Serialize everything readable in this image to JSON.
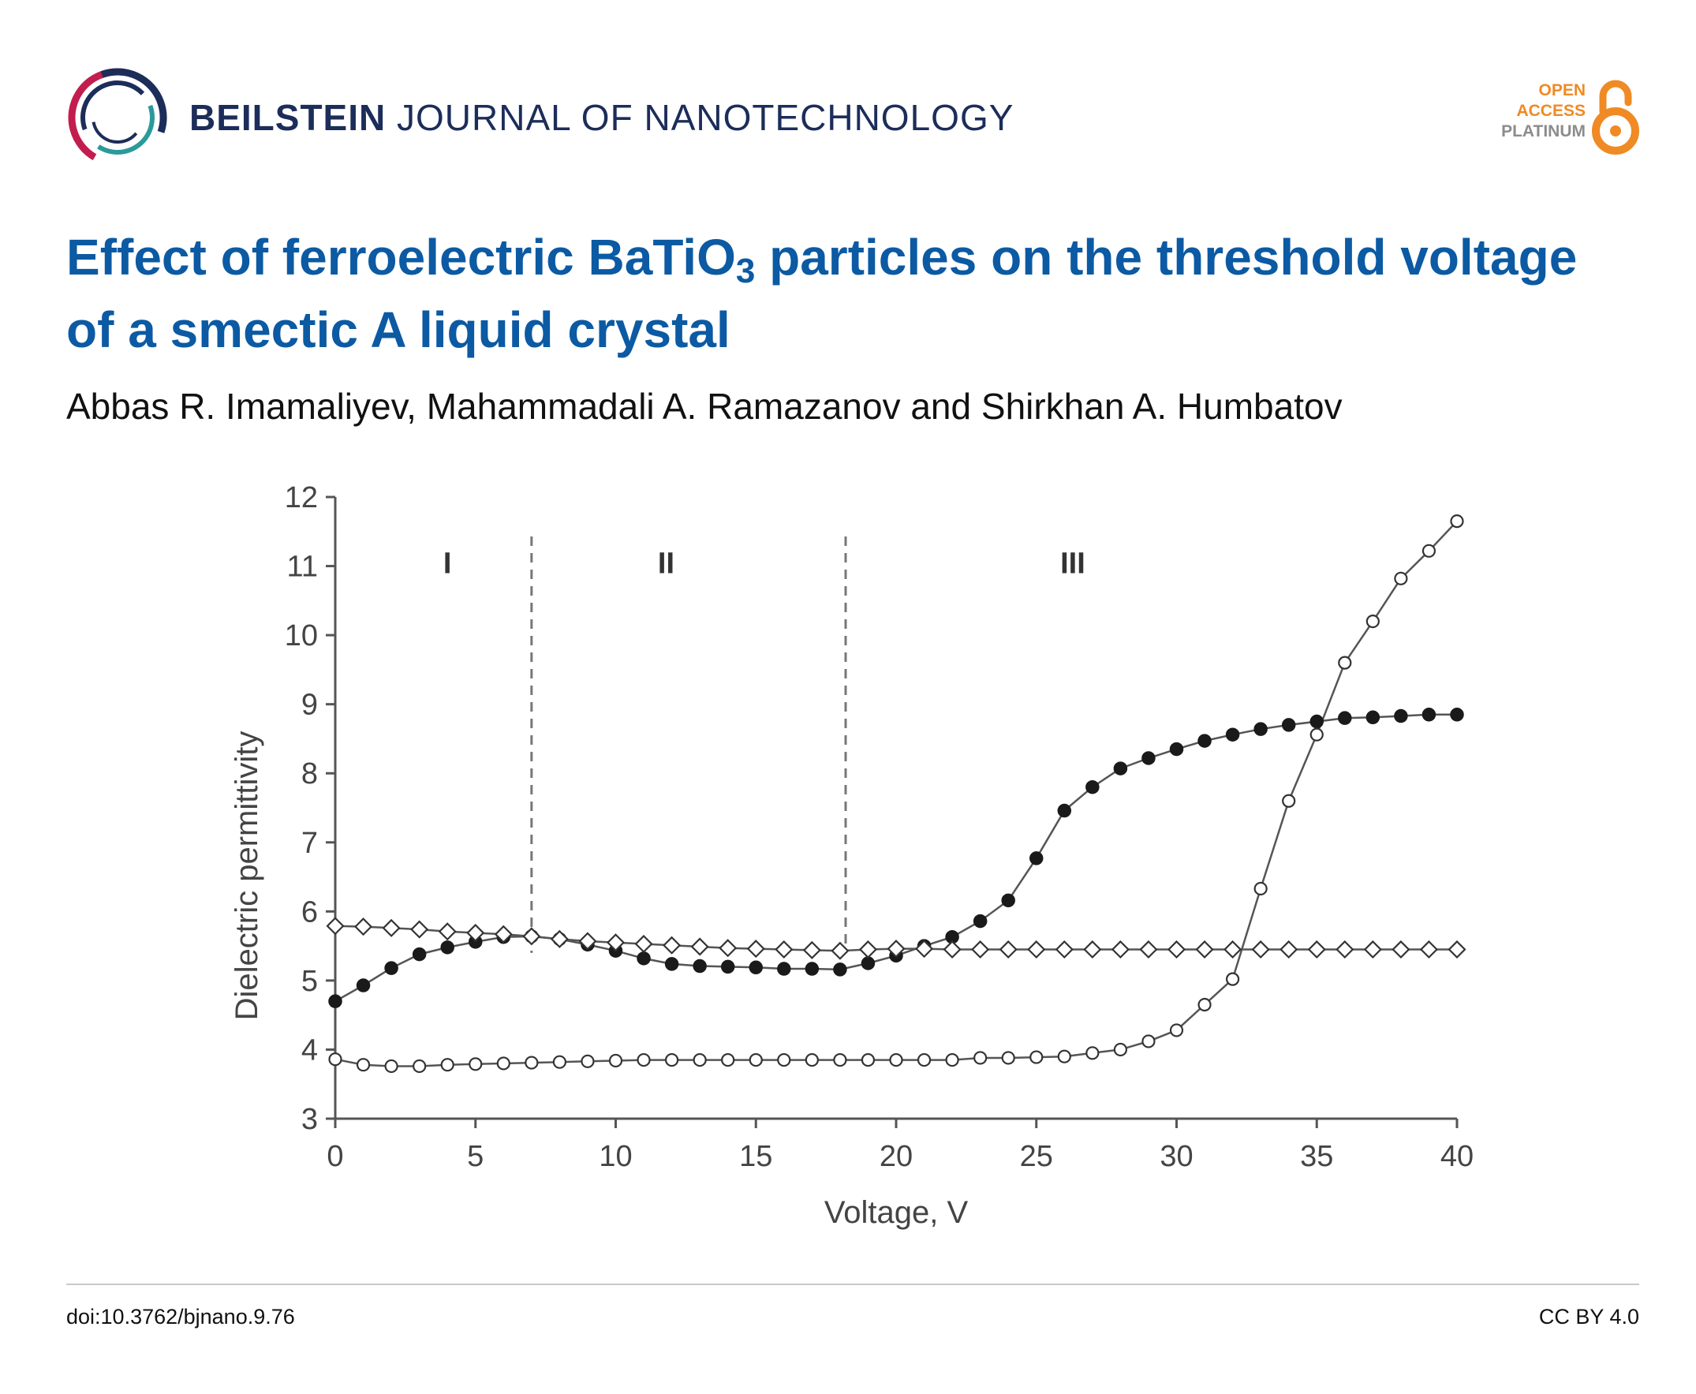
{
  "header": {
    "journal_bold": "BEILSTEIN",
    "journal_light": "JOURNAL OF NANOTECHNOLOGY",
    "logo_icon": "beilstein-swirl-logo",
    "open_access": [
      "OPEN",
      "ACCESS",
      "PLATINUM"
    ],
    "open_access_icon": "open-lock-icon",
    "colors": {
      "navy": "#1c2d5a",
      "orange": "#f08a24",
      "title_blue": "#0b5aa3"
    }
  },
  "article": {
    "title_before": "Effect of ferroelectric BaTiO",
    "title_sub": "3",
    "title_after": " particles on the threshold voltage of a smectic A liquid crystal",
    "authors": "Abbas R. Imamaliyev, Mahammadali A. Ramazanov and Shirkhan A. Humbatov"
  },
  "chart_data": {
    "type": "line",
    "xlabel": "Voltage, V",
    "ylabel": "Dielectric permittivity",
    "xlim": [
      0,
      40
    ],
    "ylim": [
      3,
      12
    ],
    "xticks": [
      0,
      5,
      10,
      15,
      20,
      25,
      30,
      35,
      40
    ],
    "yticks": [
      3,
      4,
      5,
      6,
      7,
      8,
      9,
      10,
      11,
      12
    ],
    "grid": false,
    "region_boundaries": [
      7,
      18.2
    ],
    "regions": [
      {
        "label": "I",
        "x": 4
      },
      {
        "label": "II",
        "x": 11.8
      },
      {
        "label": "III",
        "x": 26.3
      }
    ],
    "series": [
      {
        "marker": "filled-circle",
        "x": [
          0,
          1,
          2,
          3,
          4,
          5,
          6,
          7,
          8,
          9,
          10,
          11,
          12,
          13,
          14,
          15,
          16,
          17,
          18,
          19,
          20,
          21,
          22,
          23,
          24,
          25,
          26,
          27,
          28,
          29,
          30,
          31,
          32,
          33,
          34,
          35,
          36,
          37,
          38,
          39,
          40
        ],
        "y": [
          4.7,
          4.93,
          5.18,
          5.38,
          5.48,
          5.56,
          5.63,
          5.64,
          5.6,
          5.52,
          5.43,
          5.32,
          5.24,
          5.21,
          5.2,
          5.19,
          5.17,
          5.17,
          5.16,
          5.25,
          5.36,
          5.5,
          5.63,
          5.86,
          6.16,
          6.77,
          7.46,
          7.8,
          8.07,
          8.22,
          8.35,
          8.47,
          8.56,
          8.64,
          8.7,
          8.75,
          8.8,
          8.81,
          8.83,
          8.85,
          8.85
        ]
      },
      {
        "marker": "open-circle",
        "x": [
          0,
          1,
          2,
          3,
          4,
          5,
          6,
          7,
          8,
          9,
          10,
          11,
          12,
          13,
          14,
          15,
          16,
          17,
          18,
          19,
          20,
          21,
          22,
          23,
          24,
          25,
          26,
          27,
          28,
          29,
          30,
          31,
          32,
          33,
          34,
          35,
          36,
          37,
          38,
          39,
          40
        ],
        "y": [
          3.86,
          3.78,
          3.76,
          3.76,
          3.78,
          3.79,
          3.8,
          3.81,
          3.82,
          3.83,
          3.84,
          3.85,
          3.85,
          3.85,
          3.85,
          3.85,
          3.85,
          3.85,
          3.85,
          3.85,
          3.85,
          3.85,
          3.85,
          3.88,
          3.88,
          3.89,
          3.9,
          3.95,
          4.0,
          4.12,
          4.28,
          4.65,
          5.02,
          6.33,
          7.6,
          8.56,
          9.6,
          10.2,
          10.82,
          11.22,
          11.65
        ]
      },
      {
        "marker": "open-diamond",
        "x": [
          0,
          1,
          2,
          3,
          4,
          5,
          6,
          7,
          8,
          9,
          10,
          11,
          12,
          13,
          14,
          15,
          16,
          17,
          18,
          19,
          20,
          21,
          22,
          23,
          24,
          25,
          26,
          27,
          28,
          29,
          30,
          31,
          32,
          33,
          34,
          35,
          36,
          37,
          38,
          39,
          40
        ],
        "y": [
          5.79,
          5.78,
          5.76,
          5.74,
          5.71,
          5.69,
          5.67,
          5.64,
          5.6,
          5.57,
          5.55,
          5.53,
          5.51,
          5.49,
          5.47,
          5.46,
          5.45,
          5.44,
          5.43,
          5.45,
          5.46,
          5.46,
          5.45,
          5.45,
          5.45,
          5.45,
          5.45,
          5.45,
          5.45,
          5.45,
          5.45,
          5.45,
          5.45,
          5.45,
          5.45,
          5.45,
          5.45,
          5.45,
          5.45,
          5.45,
          5.45
        ]
      }
    ]
  },
  "footer": {
    "doi": "doi:10.3762/bjnano.9.76",
    "license": "CC BY 4.0"
  }
}
